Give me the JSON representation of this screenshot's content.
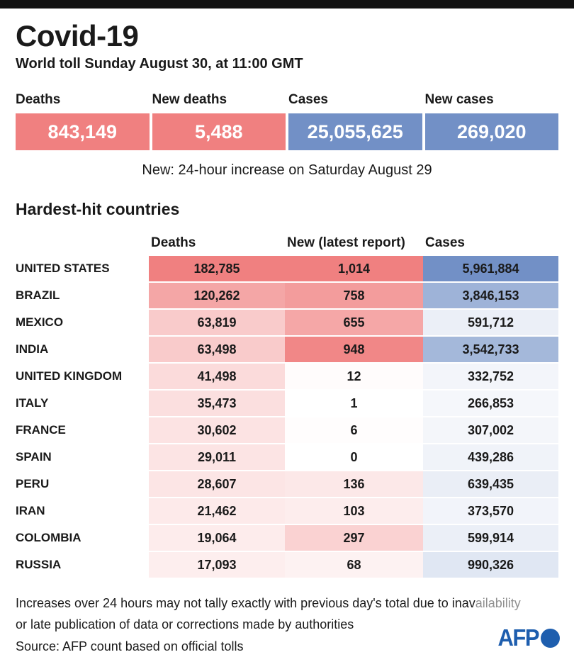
{
  "header": {
    "title": "Covid-19",
    "subtitle": "World toll Sunday August 30, at 11:00 GMT"
  },
  "summary": {
    "items": [
      {
        "label": "Deaths",
        "value": "843,149",
        "tone": "red"
      },
      {
        "label": "New deaths",
        "value": "5,488",
        "tone": "red"
      },
      {
        "label": "Cases",
        "value": "25,055,625",
        "tone": "blue"
      },
      {
        "label": "New cases",
        "value": "269,020",
        "tone": "blue"
      }
    ],
    "note": "New: 24-hour increase on Saturday August 29"
  },
  "section_title": "Hardest-hit countries",
  "chart_data": {
    "type": "table",
    "title": "Hardest-hit countries",
    "columns": [
      "Deaths",
      "New (latest report)",
      "Cases"
    ],
    "rows": [
      {
        "country": "UNITED STATES",
        "deaths": "182,785",
        "new": "1,014",
        "cases": "5,961,884"
      },
      {
        "country": "BRAZIL",
        "deaths": "120,262",
        "new": "758",
        "cases": "3,846,153"
      },
      {
        "country": "MEXICO",
        "deaths": "63,819",
        "new": "655",
        "cases": "591,712"
      },
      {
        "country": "INDIA",
        "deaths": "63,498",
        "new": "948",
        "cases": "3,542,733"
      },
      {
        "country": "UNITED KINGDOM",
        "deaths": "41,498",
        "new": "12",
        "cases": "332,752"
      },
      {
        "country": "ITALY",
        "deaths": "35,473",
        "new": "1",
        "cases": "266,853"
      },
      {
        "country": "FRANCE",
        "deaths": "30,602",
        "new": "6",
        "cases": "307,002"
      },
      {
        "country": "SPAIN",
        "deaths": "29,011",
        "new": "0",
        "cases": "439,286"
      },
      {
        "country": "PERU",
        "deaths": "28,607",
        "new": "136",
        "cases": "639,435"
      },
      {
        "country": "IRAN",
        "deaths": "21,462",
        "new": "103",
        "cases": "373,570"
      },
      {
        "country": "COLOMBIA",
        "deaths": "19,064",
        "new": "297",
        "cases": "599,914"
      },
      {
        "country": "RUSSIA",
        "deaths": "17,093",
        "new": "68",
        "cases": "990,326"
      }
    ],
    "heatmap_note": "cell shading scales from white to heat_red (deaths/new) and white to heat_blue (cases) by value"
  },
  "colors": {
    "top_bar": "#111111",
    "heat_red": "#F08080",
    "heat_blue": "#7290C6",
    "text": "#1a1a1a",
    "faded_text": "#8f8f8f",
    "afp_blue": "#1E5EAE"
  },
  "footer": {
    "note1_main": "Increases over 24 hours may not tally exactly with previous day's total due to inav",
    "note1_faded": "ailability",
    "note2": "or late publication of data or corrections made by authorities",
    "source": "Source: AFP count based on official tolls",
    "logo_text": "AFP"
  }
}
